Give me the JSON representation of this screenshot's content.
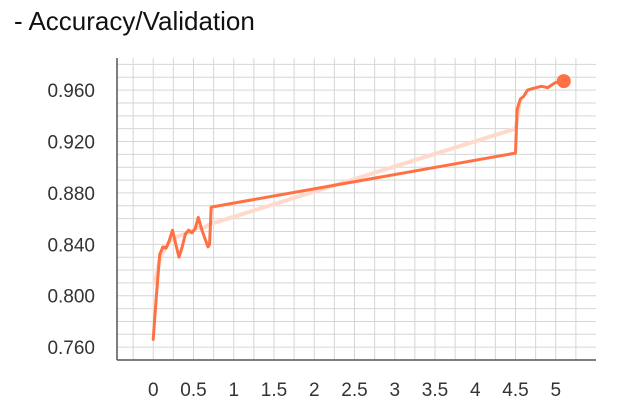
{
  "chart_data": {
    "type": "line",
    "title": "- Accuracy/Validation",
    "xlabel": "",
    "ylabel": "",
    "xlim": [
      -0.45,
      5.5
    ],
    "ylim": [
      0.75,
      0.985
    ],
    "grid": true,
    "colors": {
      "main": "#ff7043",
      "smoothed": "#ffd9cc",
      "grid": "#d6d6d6"
    },
    "x_ticks": [
      {
        "value": 0,
        "label": "0"
      },
      {
        "value": 0.5,
        "label": "0.5"
      },
      {
        "value": 1,
        "label": "1"
      },
      {
        "value": 1.5,
        "label": "1.5"
      },
      {
        "value": 2,
        "label": "2"
      },
      {
        "value": 2.5,
        "label": "2.5"
      },
      {
        "value": 3,
        "label": "3"
      },
      {
        "value": 3.5,
        "label": "3.5"
      },
      {
        "value": 4,
        "label": "4"
      },
      {
        "value": 4.5,
        "label": "4.5"
      },
      {
        "value": 5,
        "label": "5"
      }
    ],
    "y_ticks": [
      {
        "value": 0.76,
        "label": "0.760"
      },
      {
        "value": 0.8,
        "label": "0.800"
      },
      {
        "value": 0.84,
        "label": "0.840"
      },
      {
        "value": 0.88,
        "label": "0.880"
      },
      {
        "value": 0.92,
        "label": "0.920"
      },
      {
        "value": 0.96,
        "label": "0.960"
      }
    ],
    "series": [
      {
        "role": "smoothed",
        "x": [
          0.02,
          0.08,
          0.15,
          0.22,
          0.3,
          0.38,
          0.46,
          0.55,
          0.63,
          0.72,
          4.5,
          4.56
        ],
        "y": [
          0.81,
          0.828,
          0.838,
          0.843,
          0.846,
          0.848,
          0.85,
          0.853,
          0.853,
          0.856,
          0.93,
          0.952
        ]
      },
      {
        "role": "main",
        "x": [
          0.0,
          0.04,
          0.08,
          0.12,
          0.16,
          0.2,
          0.24,
          0.28,
          0.32,
          0.36,
          0.4,
          0.44,
          0.48,
          0.52,
          0.56,
          0.6,
          0.64,
          0.68,
          0.7,
          0.72,
          4.5,
          4.52,
          4.56,
          4.6,
          4.65,
          4.7,
          4.76,
          4.82,
          4.9,
          5.0,
          5.05,
          5.1
        ],
        "y": [
          0.766,
          0.8,
          0.832,
          0.838,
          0.837,
          0.843,
          0.851,
          0.84,
          0.83,
          0.838,
          0.848,
          0.851,
          0.849,
          0.852,
          0.861,
          0.852,
          0.845,
          0.838,
          0.84,
          0.869,
          0.911,
          0.945,
          0.953,
          0.955,
          0.96,
          0.961,
          0.962,
          0.963,
          0.962,
          0.966,
          0.966,
          0.967
        ]
      }
    ]
  }
}
